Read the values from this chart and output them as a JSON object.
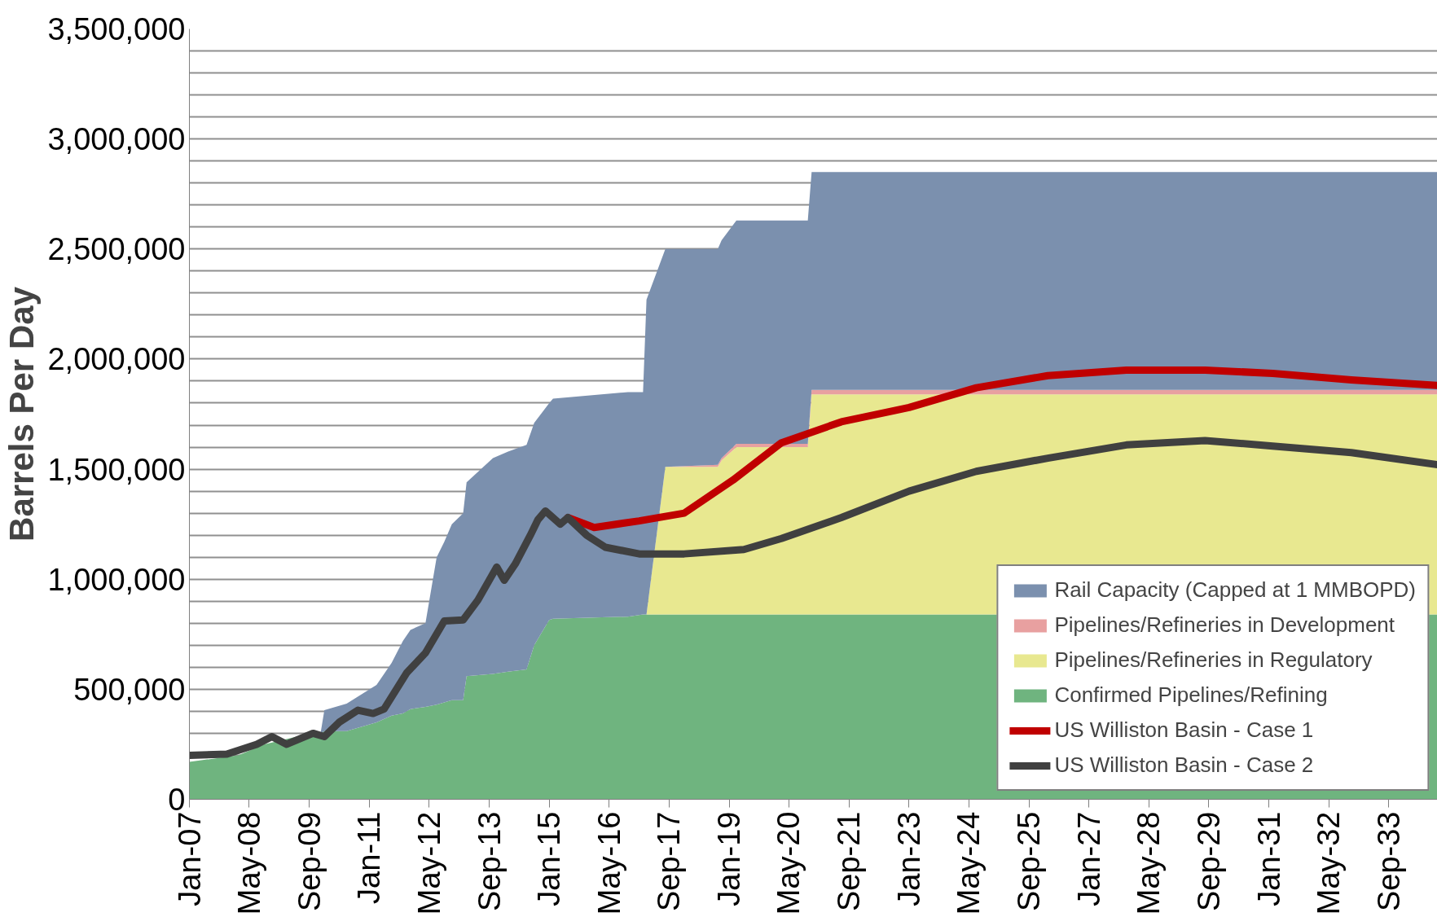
{
  "chart_data": {
    "type": "area",
    "stacked": true,
    "ylabel": "Barrels Per Day",
    "grid": "y",
    "legend": "bottom right",
    "xlim": [
      "2007-01",
      "2034-10"
    ],
    "ylim": [
      0,
      3500000
    ],
    "xticks": [
      {
        "value": "2007-01",
        "label": "Jan-07"
      },
      {
        "value": "2008-05",
        "label": "May-08"
      },
      {
        "value": "2009-09",
        "label": "Sep-09"
      },
      {
        "value": "2011-01",
        "label": "Jan-11"
      },
      {
        "value": "2012-05",
        "label": "May-12"
      },
      {
        "value": "2013-09",
        "label": "Sep-13"
      },
      {
        "value": "2015-01",
        "label": "Jan-15"
      },
      {
        "value": "2016-05",
        "label": "May-16"
      },
      {
        "value": "2017-09",
        "label": "Sep-17"
      },
      {
        "value": "2019-01",
        "label": "Jan-19"
      },
      {
        "value": "2020-05",
        "label": "May-20"
      },
      {
        "value": "2021-09",
        "label": "Sep-21"
      },
      {
        "value": "2023-01",
        "label": "Jan-23"
      },
      {
        "value": "2024-05",
        "label": "May-24"
      },
      {
        "value": "2025-09",
        "label": "Sep-25"
      },
      {
        "value": "2027-01",
        "label": "Jan-27"
      },
      {
        "value": "2028-05",
        "label": "May-28"
      },
      {
        "value": "2029-09",
        "label": "Sep-29"
      },
      {
        "value": "2031-01",
        "label": "Jan-31"
      },
      {
        "value": "2032-05",
        "label": "May-32"
      },
      {
        "value": "2033-09",
        "label": "Sep-33"
      }
    ],
    "yticks": [
      {
        "value": 0,
        "label": "0"
      },
      {
        "value": 100000,
        "label": null
      },
      {
        "value": 200000,
        "label": null
      },
      {
        "value": 300000,
        "label": null
      },
      {
        "value": 400000,
        "label": null
      },
      {
        "value": 500000,
        "label": "500,000"
      },
      {
        "value": 600000,
        "label": null
      },
      {
        "value": 700000,
        "label": null
      },
      {
        "value": 800000,
        "label": null
      },
      {
        "value": 900000,
        "label": null
      },
      {
        "value": 1000000,
        "label": "1,000,000"
      },
      {
        "value": 1100000,
        "label": null
      },
      {
        "value": 1200000,
        "label": null
      },
      {
        "value": 1300000,
        "label": null
      },
      {
        "value": 1400000,
        "label": null
      },
      {
        "value": 1500000,
        "label": "1,500,000"
      },
      {
        "value": 1600000,
        "label": null
      },
      {
        "value": 1700000,
        "label": null
      },
      {
        "value": 1800000,
        "label": null
      },
      {
        "value": 1900000,
        "label": null
      },
      {
        "value": 2000000,
        "label": "2,000,000"
      },
      {
        "value": 2100000,
        "label": null
      },
      {
        "value": 2200000,
        "label": null
      },
      {
        "value": 2300000,
        "label": null
      },
      {
        "value": 2400000,
        "label": null
      },
      {
        "value": 2500000,
        "label": "2,500,000"
      },
      {
        "value": 2600000,
        "label": null
      },
      {
        "value": 2700000,
        "label": null
      },
      {
        "value": 2800000,
        "label": null
      },
      {
        "value": 2900000,
        "label": null
      },
      {
        "value": 3000000,
        "label": "3,000,000"
      },
      {
        "value": 3100000,
        "label": null
      },
      {
        "value": 3200000,
        "label": null
      },
      {
        "value": 3300000,
        "label": null
      },
      {
        "value": 3400000,
        "label": null
      },
      {
        "value": 3500000,
        "label": "3,500,000"
      }
    ],
    "x": [
      "2007-01",
      "2008-02",
      "2008-09",
      "2009-07",
      "2009-12",
      "2010-01",
      "2010-07",
      "2011-03",
      "2011-07",
      "2011-10",
      "2011-12",
      "2012-04",
      "2012-07",
      "2012-09",
      "2012-11",
      "2013-02",
      "2013-03",
      "2013-10",
      "2014-02",
      "2014-07",
      "2014-09",
      "2015-01",
      "2015-02",
      "2016-10",
      "2017-02",
      "2017-03",
      "2017-08",
      "2018-10",
      "2018-11",
      "2019-03",
      "2020-10",
      "2020-11",
      "2034-10"
    ],
    "series": [
      {
        "name": "Confirmed Pipelines/Refining",
        "color": "#6fb47f",
        "values": [
          170000,
          200000,
          250000,
          290000,
          300000,
          310000,
          310000,
          350000,
          380000,
          390000,
          410000,
          420000,
          430000,
          440000,
          450000,
          450000,
          560000,
          570000,
          580000,
          590000,
          700000,
          815000,
          820000,
          830000,
          840000,
          840000,
          840000,
          840000,
          840000,
          840000,
          840000,
          840000,
          840000
        ]
      },
      {
        "name": "Pipelines/Refineries in Regulatory",
        "color": "#e8e890",
        "values": [
          0,
          0,
          0,
          0,
          0,
          0,
          0,
          0,
          0,
          0,
          0,
          0,
          0,
          0,
          0,
          0,
          0,
          0,
          0,
          0,
          0,
          0,
          0,
          0,
          0,
          0,
          670000,
          670000,
          700000,
          760000,
          760000,
          1000000,
          1000000
        ]
      },
      {
        "name": "Pipelines/Refineries in Development",
        "color": "#e8a0a0",
        "values": [
          0,
          0,
          0,
          0,
          0,
          0,
          0,
          0,
          0,
          0,
          0,
          0,
          0,
          0,
          0,
          0,
          0,
          0,
          0,
          0,
          0,
          0,
          0,
          0,
          0,
          0,
          0,
          10000,
          10000,
          15000,
          15000,
          20000,
          20000
        ]
      },
      {
        "name": "Rail Capacity (Capped at 1 MMBOPD)",
        "color": "#7b90ae",
        "values": [
          0,
          0,
          0,
          0,
          0,
          95000,
          125000,
          170000,
          240000,
          330000,
          360000,
          380000,
          670000,
          730000,
          800000,
          850000,
          880000,
          980000,
          1000000,
          1020000,
          1010000,
          985000,
          1000000,
          1020000,
          1010000,
          1430000,
          990000,
          980000,
          990000,
          1015000,
          1015000,
          990000,
          990000
        ]
      },
      {
        "name": "US Williston Basin - Case 1",
        "type": "line",
        "color": "#c00000",
        "x": [
          "2015-06",
          "2016-01",
          "2017-01",
          "2018-01",
          "2019-02",
          "2020-03",
          "2021-07",
          "2023-01",
          "2024-07",
          "2026-02",
          "2027-11",
          "2029-08",
          "2031-02",
          "2032-11",
          "2034-10"
        ],
        "values": [
          1280000,
          1235000,
          1265000,
          1300000,
          1450000,
          1620000,
          1715000,
          1780000,
          1870000,
          1925000,
          1950000,
          1950000,
          1935000,
          1905000,
          1880000
        ]
      },
      {
        "name": "US Williston Basin - Case 2",
        "type": "line",
        "color": "#404040",
        "x": [
          "2007-01",
          "2007-11",
          "2008-07",
          "2008-11",
          "2009-03",
          "2009-10",
          "2010-01",
          "2010-05",
          "2010-10",
          "2011-02",
          "2011-05",
          "2011-11",
          "2012-04",
          "2012-09",
          "2013-02",
          "2013-06",
          "2013-11",
          "2014-01",
          "2014-04",
          "2014-08",
          "2014-10",
          "2014-12",
          "2015-04",
          "2015-06",
          "2015-11",
          "2016-04",
          "2017-01",
          "2018-01",
          "2019-05",
          "2020-03",
          "2021-07",
          "2023-01",
          "2024-07",
          "2026-02",
          "2027-11",
          "2029-08",
          "2031-02",
          "2032-11",
          "2034-10"
        ],
        "values": [
          200000,
          205000,
          250000,
          285000,
          250000,
          300000,
          285000,
          350000,
          405000,
          390000,
          410000,
          575000,
          665000,
          810000,
          815000,
          905000,
          1055000,
          995000,
          1070000,
          1200000,
          1270000,
          1310000,
          1250000,
          1280000,
          1200000,
          1145000,
          1115000,
          1115000,
          1135000,
          1185000,
          1280000,
          1400000,
          1490000,
          1550000,
          1610000,
          1630000,
          1605000,
          1575000,
          1520000
        ]
      }
    ]
  }
}
